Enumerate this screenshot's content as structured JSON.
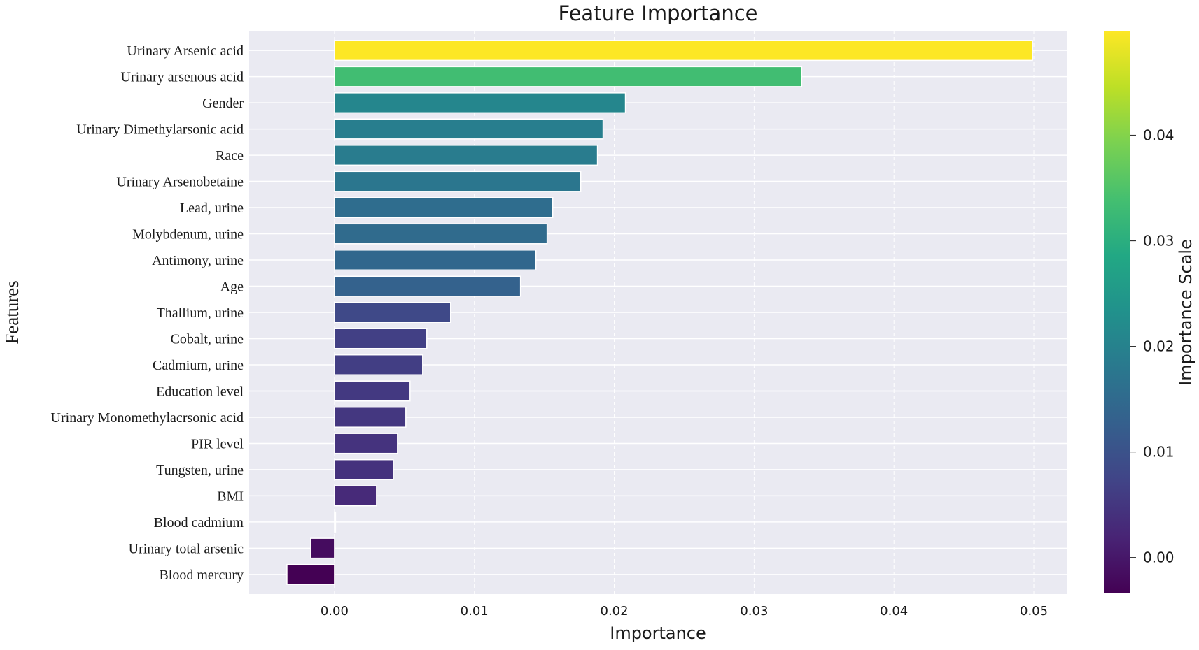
{
  "chart_data": {
    "type": "bar",
    "orientation": "horizontal",
    "title": "Feature Importance",
    "xlabel": "Importance",
    "ylabel": "Features",
    "xlim": [
      -0.0061,
      0.0524
    ],
    "xticks": [
      "0.00",
      "0.01",
      "0.02",
      "0.03",
      "0.04",
      "0.05"
    ],
    "grid": true,
    "categories": [
      "Urinary Arsenic acid",
      "Urinary arsenous acid",
      "Gender",
      "Urinary Dimethylarsonic acid",
      "Race",
      "Urinary Arsenobetaine",
      "Lead, urine",
      "Molybdenum, urine",
      "Antimony, urine",
      "Age",
      "Thallium, urine",
      "Cobalt, urine",
      "Cadmium, urine",
      "Education level",
      "Urinary Monomethylacrsonic acid",
      "PIR level",
      "Tungsten, urine",
      "BMI",
      "Blood cadmium",
      "Urinary total arsenic",
      "Blood mercury"
    ],
    "values": [
      0.0499,
      0.0334,
      0.0208,
      0.0192,
      0.0188,
      0.0176,
      0.0156,
      0.0152,
      0.0144,
      0.0133,
      0.0083,
      0.0066,
      0.0063,
      0.0054,
      0.0051,
      0.0045,
      0.0042,
      0.003,
      0.0,
      -0.0017,
      -0.0034
    ],
    "colorbar": {
      "label": "Importance Scale",
      "range": [
        -0.0034,
        0.0499
      ],
      "ticks": [
        "0.00",
        "0.01",
        "0.02",
        "0.03",
        "0.04"
      ],
      "colormap": "viridis"
    }
  }
}
